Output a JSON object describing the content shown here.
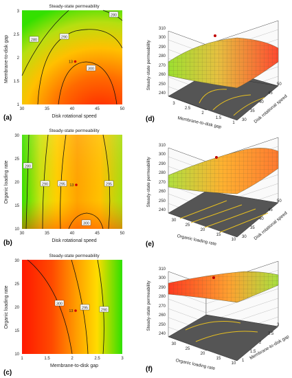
{
  "chart_data": [
    {
      "panel": "(a)",
      "type": "contour",
      "title": "Steady-state permeability",
      "xlabel": "Disk rotational speed",
      "ylabel": "Membrane-to-disk gap",
      "xlim": [
        30,
        50
      ],
      "ylim": [
        1,
        3
      ],
      "xticks": [
        "30",
        "35",
        "40",
        "45",
        "50"
      ],
      "yticks": [
        "1",
        "1.5",
        "2",
        "2.5",
        "3"
      ],
      "contour_levels": [
        "280",
        "290",
        "300"
      ],
      "marker": {
        "label": "13",
        "x": 40,
        "y": 2
      }
    },
    {
      "panel": "(b)",
      "type": "contour",
      "title": "Steady-state permeability",
      "xlabel": "Disk rotational speed",
      "ylabel": "Organic loading rate",
      "xlim": [
        30,
        50
      ],
      "ylim": [
        10,
        30
      ],
      "xticks": [
        "30",
        "35",
        "40",
        "45",
        "50"
      ],
      "yticks": [
        "10",
        "15",
        "20",
        "25",
        "30"
      ],
      "contour_levels": [
        "280",
        "290",
        "295",
        "295",
        "300"
      ],
      "marker": {
        "label": "13",
        "x": 40,
        "y": 20
      }
    },
    {
      "panel": "(c)",
      "type": "contour",
      "title": "Steady-state permeability",
      "xlabel": "Membrane-to-disk gap",
      "ylabel": "Organic loading rate",
      "xlim": [
        1,
        3
      ],
      "ylim": [
        10,
        30
      ],
      "xticks": [
        "1",
        "1.5",
        "2",
        "2.5",
        "3"
      ],
      "yticks": [
        "10",
        "15",
        "20",
        "25",
        "30"
      ],
      "contour_levels": [
        "300",
        "295",
        "290"
      ],
      "marker": {
        "label": "13",
        "x": 2,
        "y": 20
      }
    },
    {
      "panel": "(d)",
      "type": "surface3d",
      "zlabel": "Steady-state permeability",
      "zticks": [
        "240",
        "250",
        "260",
        "270",
        "280",
        "290",
        "300",
        "310"
      ],
      "xlabel": "Membrane-to-disk gap",
      "xticks": [
        "3",
        "2.5",
        "2",
        "1.5",
        "1"
      ],
      "ylabel": "Disk rotational speed",
      "yticks": [
        "30",
        "35",
        "40",
        "45",
        "50"
      ]
    },
    {
      "panel": "(e)",
      "type": "surface3d",
      "zlabel": "Steady-state permeability",
      "zticks": [
        "240",
        "250",
        "260",
        "270",
        "280",
        "290",
        "300",
        "310"
      ],
      "xlabel": "Organic loading rate",
      "xticks": [
        "30",
        "25",
        "20",
        "15",
        "10"
      ],
      "ylabel": "Disk rotational speed",
      "yticks": [
        "30",
        "35",
        "40",
        "45",
        "50"
      ]
    },
    {
      "panel": "(f)",
      "type": "surface3d",
      "zlabel": "Steady-state permeability",
      "zticks": [
        "240",
        "250",
        "260",
        "270",
        "280",
        "290",
        "300",
        "310"
      ],
      "xlabel": "Organic loading rate",
      "xticks": [
        "30",
        "25",
        "20",
        "15",
        "10"
      ],
      "ylabel": "Membrane-to-disk gap",
      "yticks": [
        "1",
        "1.5",
        "2",
        "2.5",
        "3"
      ]
    }
  ]
}
